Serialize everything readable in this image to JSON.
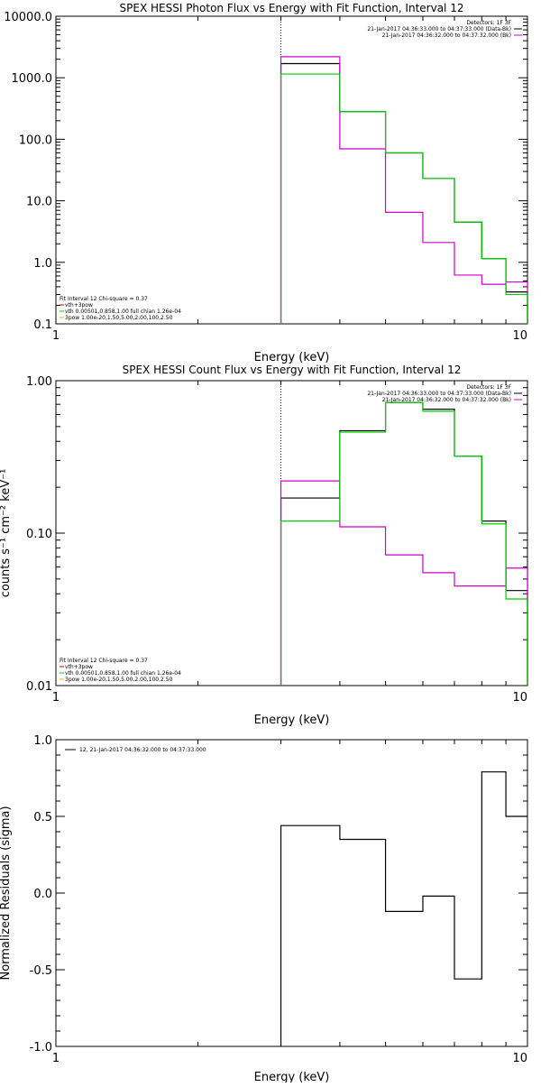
{
  "chart_data": [
    {
      "type": "line",
      "panel": "photon-flux",
      "title": "SPEX HESSI Photon Flux vs Energy with Fit Function, Interval 12",
      "xlabel": "Energy (keV)",
      "ylabel": "",
      "xscale": "log",
      "yscale": "log",
      "xlim": [
        1,
        10
      ],
      "ylim": [
        0.1,
        10000
      ],
      "xticks": [
        "1",
        "10"
      ],
      "yticks": [
        "0.1",
        "1.0",
        "10.0",
        "100.0",
        "1000.0",
        "10000.0"
      ],
      "marker_x": 3.0,
      "legend_top": [
        {
          "text": "Detectors: 1F 3F",
          "color": ""
        },
        {
          "text": "21-Jan-2017 04:36:33.000 to 04:37:33.000 (Data-Bk)",
          "color": "#000000"
        },
        {
          "text": "21-Jan-2017 04:36:32.000 to 04:37:32.000 (Bk)",
          "color": "#cc00cc"
        }
      ],
      "legend_bottom": [
        {
          "text": "Fit Interval 12   Chi-square = 0.37",
          "color": ""
        },
        {
          "text": "vth+3pow",
          "color": "#cc0000"
        },
        {
          "text": "vth 0.00501,0.858,1.00  full chian 1.26e-04",
          "color": "#00cc00"
        },
        {
          "text": "3pow 1.00e-20,1.50,5.00,2.00,100,2.50",
          "color": "#ffaa00"
        }
      ],
      "bin_edges": [
        3.0,
        4.0,
        5.0,
        6.0,
        7.0,
        8.0,
        9.0,
        10.0
      ],
      "series": [
        {
          "name": "Data-Bk",
          "color": "#000000",
          "values": [
            1700,
            280,
            60,
            23,
            4.5,
            1.15,
            0.33
          ]
        },
        {
          "name": "Bk",
          "color": "#cc00cc",
          "values": [
            2200,
            70,
            6.5,
            2.1,
            0.62,
            0.44,
            0.48
          ]
        },
        {
          "name": "vth+3pow",
          "color": "#00cc00",
          "values": [
            1150,
            280,
            60,
            23,
            4.5,
            1.15,
            0.3
          ]
        }
      ]
    },
    {
      "type": "line",
      "panel": "count-flux",
      "title": "SPEX HESSI Count Flux vs Energy with Fit Function, Interval 12",
      "xlabel": "Energy (keV)",
      "ylabel": "counts s⁻¹ cm⁻² keV⁻¹",
      "xscale": "log",
      "yscale": "log",
      "xlim": [
        1,
        10
      ],
      "ylim": [
        0.01,
        1.0
      ],
      "xticks": [
        "1",
        "10"
      ],
      "yticks": [
        "0.01",
        "0.10",
        "1.00"
      ],
      "marker_x": 3.0,
      "legend_top": [
        {
          "text": "Detectors: 1F 3F",
          "color": ""
        },
        {
          "text": "21-Jan-2017 04:36:33.000 to 04:37:33.000 (Data-Bk)",
          "color": "#000000"
        },
        {
          "text": "21-Jan-2017 04:36:32.000 to 04:37:32.000 (Bk)",
          "color": "#cc00cc"
        }
      ],
      "legend_bottom": [
        {
          "text": "Fit Interval 12   Chi-square = 0.37",
          "color": ""
        },
        {
          "text": "vth+3pow",
          "color": "#cc0000"
        },
        {
          "text": "vth 0.00501,0.858,1.00  full chian 1.26e-04",
          "color": "#00cc00"
        },
        {
          "text": "3pow 1.00e-20,1.50,5.00,2.00,100,2.50",
          "color": "#ffaa00"
        }
      ],
      "bin_edges": [
        3.0,
        4.0,
        5.0,
        6.0,
        7.0,
        8.0,
        9.0,
        10.0
      ],
      "series": [
        {
          "name": "Data-Bk",
          "color": "#000000",
          "values": [
            0.17,
            0.47,
            0.72,
            0.65,
            0.32,
            0.12,
            0.042
          ]
        },
        {
          "name": "Bk",
          "color": "#cc00cc",
          "values": [
            0.22,
            0.11,
            0.072,
            0.055,
            0.045,
            0.045,
            0.059
          ]
        },
        {
          "name": "vth+3pow",
          "color": "#00cc00",
          "values": [
            0.12,
            0.46,
            0.72,
            0.63,
            0.32,
            0.115,
            0.037
          ]
        }
      ]
    },
    {
      "type": "line",
      "panel": "residuals",
      "title": "",
      "xlabel": "Energy (keV)",
      "ylabel": "Normalized Residuals (sigma)",
      "xscale": "log",
      "yscale": "linear",
      "xlim": [
        1,
        10
      ],
      "ylim": [
        -1.0,
        1.0
      ],
      "xticks": [
        "1",
        "10"
      ],
      "yticks": [
        "-1.0",
        "-0.5",
        "0.0",
        "0.5",
        "1.0"
      ],
      "legend_top": [
        {
          "text": "12, 21-Jan-2017 04:36:32.000 to 04:37:33.000",
          "color": "#000000"
        }
      ],
      "bin_edges": [
        3.0,
        4.0,
        5.0,
        6.0,
        7.0,
        8.0,
        9.0,
        10.0
      ],
      "series": [
        {
          "color": "#000000",
          "values": [
            0.44,
            0.35,
            -0.12,
            -0.02,
            -0.56,
            0.79,
            0.5
          ]
        }
      ]
    }
  ]
}
